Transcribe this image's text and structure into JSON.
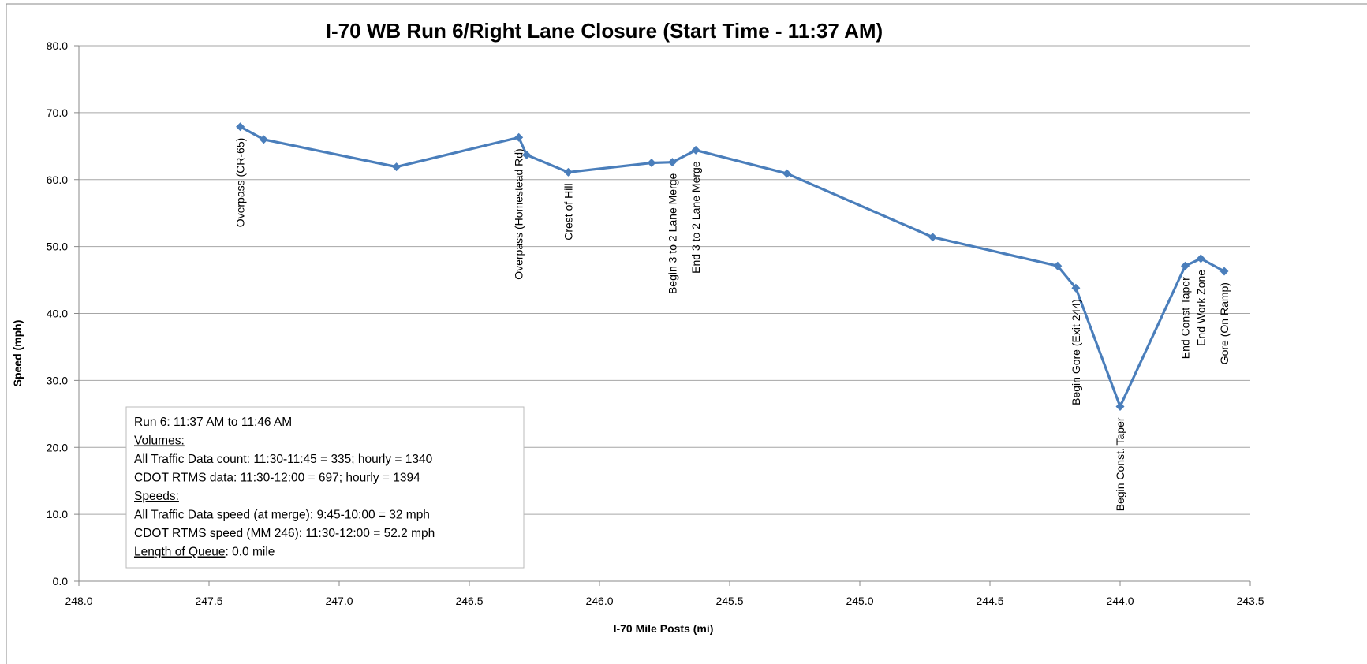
{
  "chart_data": {
    "type": "line",
    "title": "I-70 WB Run 6/Right Lane Closure (Start Time - 11:37 AM)",
    "x_label": "I-70 Mile Posts (mi)",
    "y_label": "Speed (mph)",
    "x": [
      247.38,
      247.29,
      246.78,
      246.31,
      246.28,
      246.12,
      245.8,
      245.72,
      245.63,
      245.28,
      244.72,
      244.24,
      244.17,
      244.0,
      243.75,
      243.69,
      243.6
    ],
    "series": [
      {
        "name": "Speed",
        "color": "#4a7ebb",
        "values": [
          67.9,
          66.0,
          61.9,
          66.3,
          63.7,
          61.1,
          62.5,
          62.6,
          64.4,
          60.9,
          51.4,
          47.1,
          43.8,
          26.1,
          47.1,
          48.2,
          46.3
        ],
        "point_labels": [
          "Overpass (CR-65)",
          null,
          null,
          "Overpass (Homestead Rd)",
          null,
          "Crest of Hill",
          null,
          "Begin 3 to 2 Lane Merge",
          "End 3 to 2 Lane Merge",
          null,
          null,
          null,
          "Begin Gore (Exit 244)",
          "Begin Const. Taper",
          "End Const Taper",
          "End Work Zone",
          "Gore (On Ramp)"
        ]
      }
    ],
    "xlim": [
      248.0,
      243.5
    ],
    "xticks": [
      {
        "value": 248,
        "label": "248.0"
      },
      {
        "value": 247.5,
        "label": "247.5"
      },
      {
        "value": 247,
        "label": "247.0"
      },
      {
        "value": 246.5,
        "label": "246.5"
      },
      {
        "value": 246,
        "label": "246.0"
      },
      {
        "value": 245.5,
        "label": "245.5"
      },
      {
        "value": 245,
        "label": "245.0"
      },
      {
        "value": 244.5,
        "label": "244.5"
      },
      {
        "value": 244,
        "label": "244.0"
      },
      {
        "value": 243.5,
        "label": "243.5"
      }
    ],
    "ylim": [
      0,
      80
    ],
    "yticks": [
      {
        "value": 0,
        "label": "0.0"
      },
      {
        "value": 10,
        "label": "10.0"
      },
      {
        "value": 20,
        "label": "20.0"
      },
      {
        "value": 30,
        "label": "30.0"
      },
      {
        "value": 40,
        "label": "40.0"
      },
      {
        "value": 50,
        "label": "50.0"
      },
      {
        "value": 60,
        "label": "60.0"
      },
      {
        "value": 70,
        "label": "70.0"
      },
      {
        "value": 80,
        "label": "80.0"
      }
    ],
    "grid": true,
    "textbox": [
      {
        "text": "Run 6: 11:37 AM to 11:46 AM"
      },
      {
        "text": "Volumes:",
        "underline": true
      },
      {
        "text": "All Traffic Data count: 11:30-11:45 = 335; hourly = 1340"
      },
      {
        "text": "CDOT RTMS data: 11:30-12:00 = 697; hourly = 1394"
      },
      {
        "text": "Speeds:",
        "underline": true
      },
      {
        "text": "All Traffic Data speed (at merge): 9:45-10:00 = 32 mph"
      },
      {
        "text": "CDOT RTMS speed (MM 246): 11:30-12:00 = 52.2 mph"
      },
      {
        "text": "Length of Queue",
        "underline": true,
        "suffix": ": 0.0 mile"
      }
    ]
  }
}
